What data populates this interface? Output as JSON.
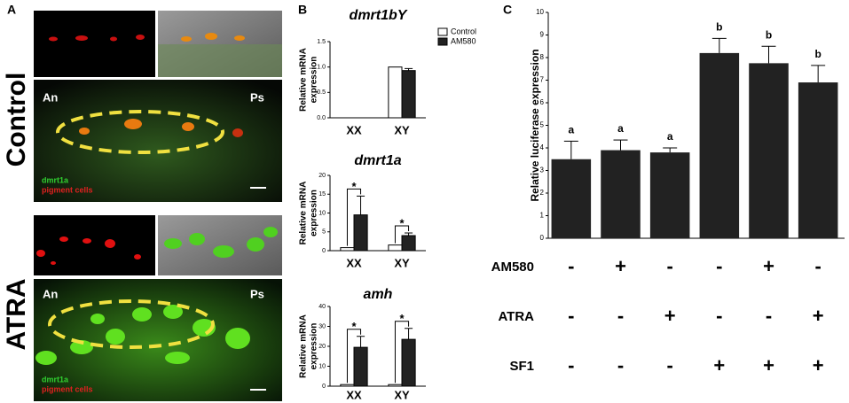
{
  "panel_a": {
    "label": "A",
    "rows": [
      {
        "name": "Control",
        "left": "An",
        "right": "Ps",
        "legend": [
          "dmrt1a",
          "pigment cells"
        ]
      },
      {
        "name": "ATRA",
        "left": "An",
        "right": "Ps",
        "legend": [
          "dmrt1a",
          "pigment cells"
        ]
      }
    ]
  },
  "chart_data": [
    {
      "type": "bar",
      "panel_label": "B",
      "title": "dmrt1bY",
      "y_label": [
        "Relative mRNA",
        "expression"
      ],
      "categories": [
        "XX",
        "XY"
      ],
      "series": [
        {
          "name": "Control",
          "color": "#ffffff",
          "values": [
            0,
            1.0
          ]
        },
        {
          "name": "AM580",
          "color": "#222222",
          "values": [
            0,
            0.93
          ],
          "errors": [
            0,
            0.04
          ]
        }
      ],
      "ylim": [
        0,
        1.5
      ],
      "yticks": [
        {
          "value": 0,
          "label": "0.0"
        },
        {
          "value": 0.5,
          "label": "0.5"
        },
        {
          "value": 1,
          "label": "1.0"
        },
        {
          "value": 1.5,
          "label": "1.5"
        }
      ],
      "legend": "upper right"
    },
    {
      "type": "bar",
      "title": "dmrt1a",
      "y_label": [
        "Relative mRNA",
        "expression"
      ],
      "categories": [
        "XX",
        "XY"
      ],
      "series": [
        {
          "color": "#ffffff",
          "values": [
            0.8,
            1.5
          ]
        },
        {
          "color": "#222222",
          "values": [
            9.5,
            4.0
          ],
          "errors": [
            5.0,
            0.7
          ]
        }
      ],
      "annotations": [
        "*",
        "*"
      ],
      "ylim": [
        0,
        20
      ],
      "yticks": [
        0,
        5,
        10,
        15,
        20
      ]
    },
    {
      "type": "bar",
      "title": "amh",
      "y_label": [
        "Relative mRNA",
        "expression"
      ],
      "categories": [
        "XX",
        "XY"
      ],
      "series": [
        {
          "color": "#ffffff",
          "values": [
            0.8,
            0.8
          ]
        },
        {
          "color": "#222222",
          "values": [
            19.5,
            23.5
          ],
          "errors": [
            5.5,
            5.5
          ]
        }
      ],
      "annotations": [
        "*",
        "*"
      ],
      "ylim": [
        0,
        40
      ],
      "yticks": [
        0,
        10,
        20,
        30,
        40
      ]
    },
    {
      "type": "bar",
      "panel_label": "C",
      "y_label": "Relative luciferase expression",
      "values": [
        3.5,
        3.9,
        3.8,
        8.2,
        7.75,
        6.9
      ],
      "errors": [
        0.8,
        0.45,
        0.2,
        0.65,
        0.75,
        0.75
      ],
      "group_labels": [
        "a",
        "a",
        "a",
        "b",
        "b",
        "b"
      ],
      "color": "#222222",
      "ylim": [
        0,
        10
      ],
      "yticks": [
        0,
        1,
        2,
        3,
        4,
        5,
        6,
        7,
        8,
        9,
        10
      ],
      "conditions": [
        {
          "name": "AM580",
          "signs": [
            "-",
            "+",
            "-",
            "-",
            "+",
            "-"
          ]
        },
        {
          "name": "ATRA",
          "signs": [
            "-",
            "-",
            "+",
            "-",
            "-",
            "+"
          ]
        },
        {
          "name": "SF1",
          "signs": [
            "-",
            "-",
            "-",
            "+",
            "+",
            "+"
          ]
        }
      ]
    }
  ]
}
